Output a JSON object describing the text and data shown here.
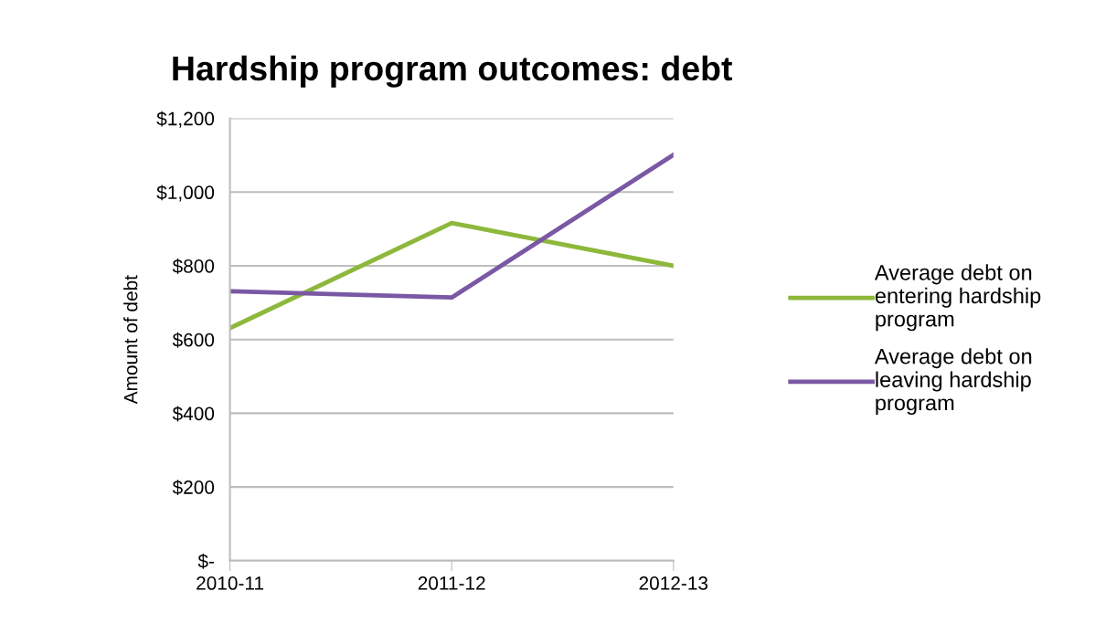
{
  "chart_data": {
    "type": "line",
    "title": "Hardship program outcomes: debt",
    "ylabel": "Amount of debt",
    "categories": [
      "2010-11",
      "2011-12",
      "2012-13"
    ],
    "series": [
      {
        "name": "Average debt on\nentering hardship\nprogram",
        "color": "#8db83c",
        "values": [
          631,
          916,
          800
        ]
      },
      {
        "name": "Average debt on\nleaving hardship\nprogram",
        "color": "#7a58a4",
        "values": [
          731,
          714,
          1101
        ]
      }
    ],
    "ylim": [
      0,
      1200
    ],
    "yticks": [
      {
        "value": 0,
        "label": "$-"
      },
      {
        "value": 200,
        "label": "$200"
      },
      {
        "value": 400,
        "label": "$400"
      },
      {
        "value": 600,
        "label": "$600"
      },
      {
        "value": 800,
        "label": "$800"
      },
      {
        "value": 1000,
        "label": "$1,000"
      },
      {
        "value": 1200,
        "label": "$1,200"
      }
    ],
    "grid": "y",
    "legend": "right",
    "marker": "none",
    "line_style": "solid"
  }
}
